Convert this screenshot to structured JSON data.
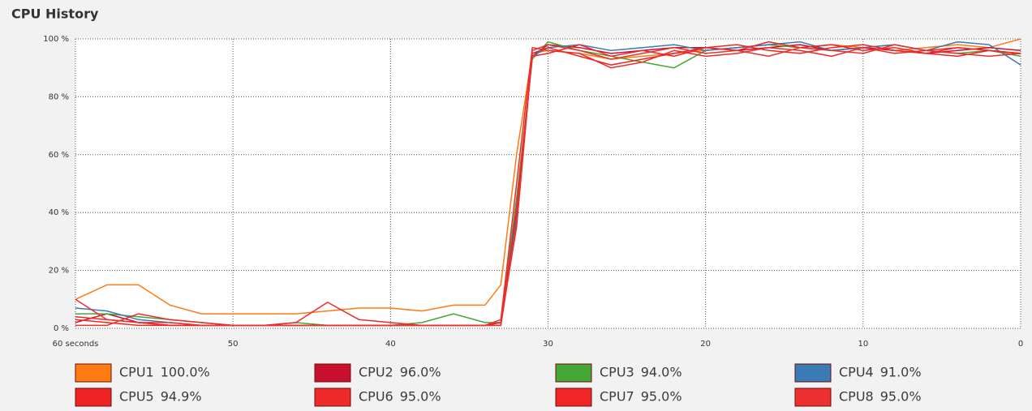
{
  "chart_data": {
    "type": "line",
    "title": "CPU History",
    "x": [
      60,
      58,
      56,
      54,
      52,
      50,
      48,
      46,
      44,
      42,
      40,
      38,
      36,
      34,
      33,
      32,
      31,
      30,
      28,
      26,
      24,
      22,
      20,
      18,
      16,
      14,
      12,
      10,
      8,
      6,
      4,
      2,
      0
    ],
    "xlim": [
      60,
      0
    ],
    "xticks": [
      {
        "value": 60,
        "label": "60 seconds"
      },
      50,
      40,
      30,
      20,
      10,
      0
    ],
    "ylim": [
      0,
      100
    ],
    "yticks": [
      {
        "value": 0,
        "label": "0 %"
      },
      {
        "value": 20,
        "label": "20 %"
      },
      {
        "value": 40,
        "label": "40 %"
      },
      {
        "value": 60,
        "label": "60 %"
      },
      {
        "value": 80,
        "label": "80 %"
      },
      {
        "value": 100,
        "label": "100 %"
      }
    ],
    "grid": true,
    "series": [
      {
        "name": "CPU1",
        "last_label": "100.0%",
        "color": "#ff7b12",
        "values": [
          10,
          15,
          15,
          8,
          5,
          5,
          5,
          5,
          6,
          7,
          7,
          6,
          8,
          8,
          15,
          60,
          95,
          96,
          95,
          93,
          94,
          95,
          96,
          97,
          98,
          97,
          98,
          97,
          96,
          97,
          98,
          97,
          100
        ]
      },
      {
        "name": "CPU2",
        "last_label": "96.0%",
        "color": "#c8102e",
        "values": [
          2,
          5,
          2,
          1,
          1,
          1,
          1,
          1,
          1,
          1,
          1,
          1,
          1,
          1,
          2,
          40,
          94,
          98,
          97,
          95,
          96,
          97,
          97,
          96,
          97,
          98,
          96,
          97,
          96,
          95,
          96,
          97,
          96
        ]
      },
      {
        "name": "CPU3",
        "last_label": "94.0%",
        "color": "#45a736",
        "values": [
          5,
          5,
          4,
          3,
          2,
          1,
          1,
          2,
          1,
          1,
          1,
          2,
          5,
          2,
          2,
          45,
          93,
          99,
          96,
          94,
          92,
          90,
          96,
          97,
          98,
          97,
          96,
          97,
          98,
          96,
          95,
          96,
          94
        ]
      },
      {
        "name": "CPU4",
        "last_label": "91.0%",
        "color": "#3a7ab5",
        "values": [
          7,
          6,
          3,
          2,
          1,
          1,
          1,
          1,
          1,
          1,
          1,
          1,
          1,
          1,
          1,
          38,
          94,
          97,
          98,
          96,
          97,
          98,
          96,
          97,
          98,
          99,
          96,
          97,
          98,
          96,
          99,
          98,
          91
        ]
      },
      {
        "name": "CPU5",
        "last_label": "94.9%",
        "color": "#ee2424",
        "values": [
          3,
          2,
          1,
          1,
          1,
          1,
          1,
          1,
          1,
          1,
          1,
          1,
          1,
          1,
          2,
          35,
          95,
          97,
          94,
          91,
          93,
          95,
          97,
          96,
          99,
          97,
          98,
          96,
          97,
          95,
          94,
          96,
          94.9
        ]
      },
      {
        "name": "CPU6",
        "last_label": "95.0%",
        "color": "#ef2a2a",
        "values": [
          1,
          1,
          5,
          3,
          2,
          1,
          1,
          2,
          9,
          3,
          2,
          1,
          1,
          1,
          3,
          50,
          97,
          96,
          95,
          90,
          92,
          96,
          94,
          95,
          97,
          96,
          94,
          97,
          95,
          96,
          97,
          96,
          95
        ]
      },
      {
        "name": "CPU7",
        "last_label": "95.0%",
        "color": "#f02626",
        "values": [
          4,
          3,
          2,
          1,
          1,
          1,
          1,
          1,
          1,
          1,
          1,
          1,
          1,
          1,
          1,
          42,
          94,
          95,
          98,
          94,
          96,
          94,
          97,
          98,
          96,
          95,
          97,
          98,
          96,
          95,
          97,
          96,
          95
        ]
      },
      {
        "name": "CPU8",
        "last_label": "95.0%",
        "color": "#ec2f2f",
        "values": [
          10,
          3,
          2,
          2,
          1,
          1,
          1,
          1,
          1,
          1,
          1,
          1,
          1,
          1,
          1,
          36,
          96,
          98,
          96,
          93,
          95,
          97,
          95,
          96,
          94,
          97,
          96,
          95,
          98,
          96,
          95,
          94,
          95
        ]
      }
    ]
  }
}
